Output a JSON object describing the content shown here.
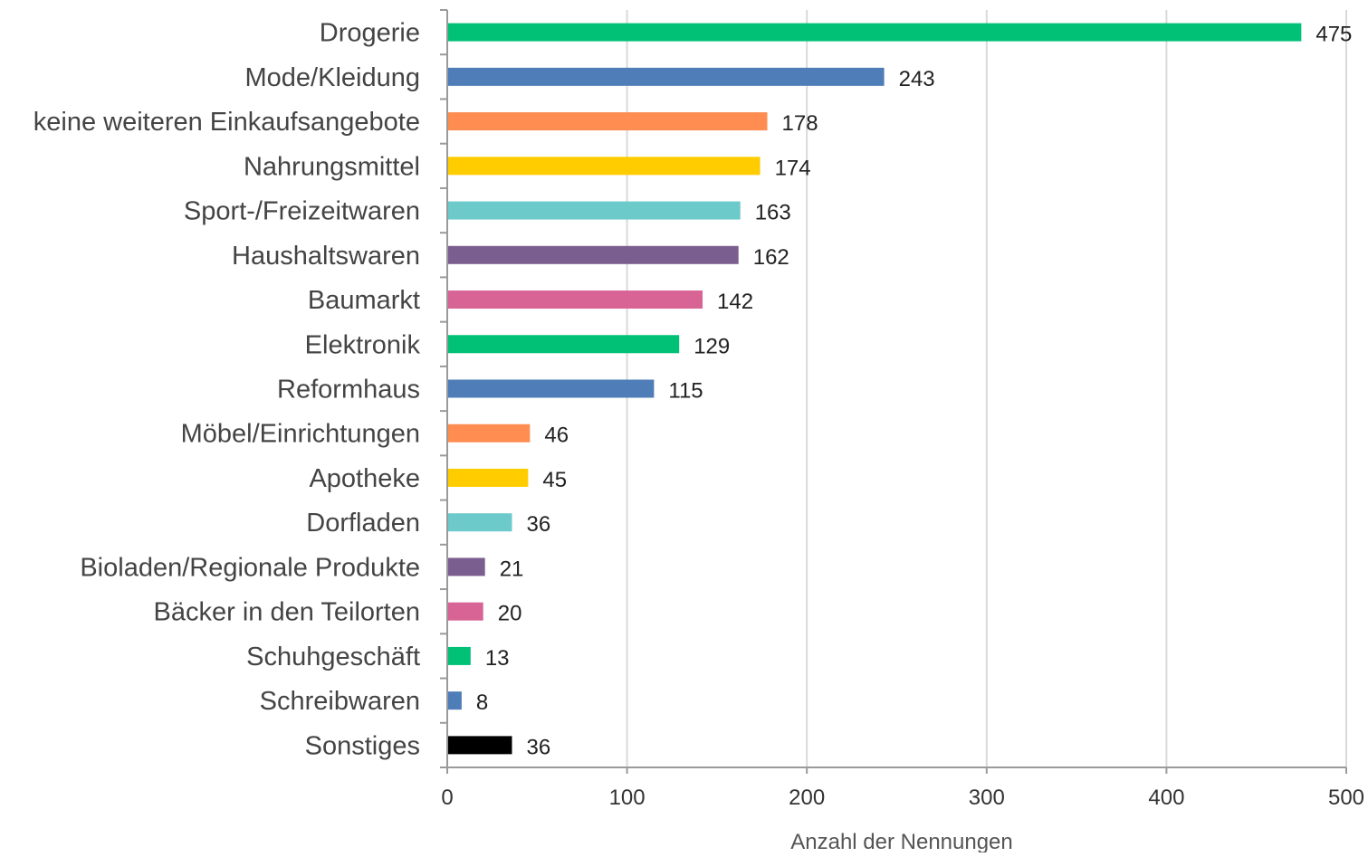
{
  "chart_data": {
    "type": "bar",
    "orientation": "horizontal",
    "categories": [
      "Drogerie",
      "Mode/Kleidung",
      "keine weiteren Einkaufsangebote",
      "Nahrungsmittel",
      "Sport-/Freizeitwaren",
      "Haushaltswaren",
      "Baumarkt",
      "Elektronik",
      "Reformhaus",
      "Möbel/Einrichtungen",
      "Apotheke",
      "Dorfladen",
      "Bioladen/Regionale Produkte",
      "Bäcker in den Teilorten",
      "Schuhgeschäft",
      "Schreibwaren",
      "Sonstiges"
    ],
    "values": [
      475,
      243,
      178,
      174,
      163,
      162,
      142,
      129,
      115,
      46,
      45,
      36,
      21,
      20,
      13,
      8,
      36
    ],
    "colors": [
      "#00c176",
      "#4f7db8",
      "#ff8c50",
      "#ffcc00",
      "#6ccacb",
      "#7b5e90",
      "#d86395",
      "#00c176",
      "#4f7db8",
      "#ff8c50",
      "#ffcc00",
      "#6ccacb",
      "#7b5e90",
      "#d86395",
      "#00c176",
      "#4f7db8",
      "#000000"
    ],
    "xlabel": "Anzahl der Nennungen",
    "ylabel": "",
    "xlim": [
      0,
      500
    ],
    "xticks": [
      0,
      100,
      200,
      300,
      400,
      500
    ],
    "xtick_labels": [
      "0",
      "100",
      "200",
      "300",
      "400",
      "500"
    ],
    "grid": "vertical",
    "legend": "none"
  }
}
